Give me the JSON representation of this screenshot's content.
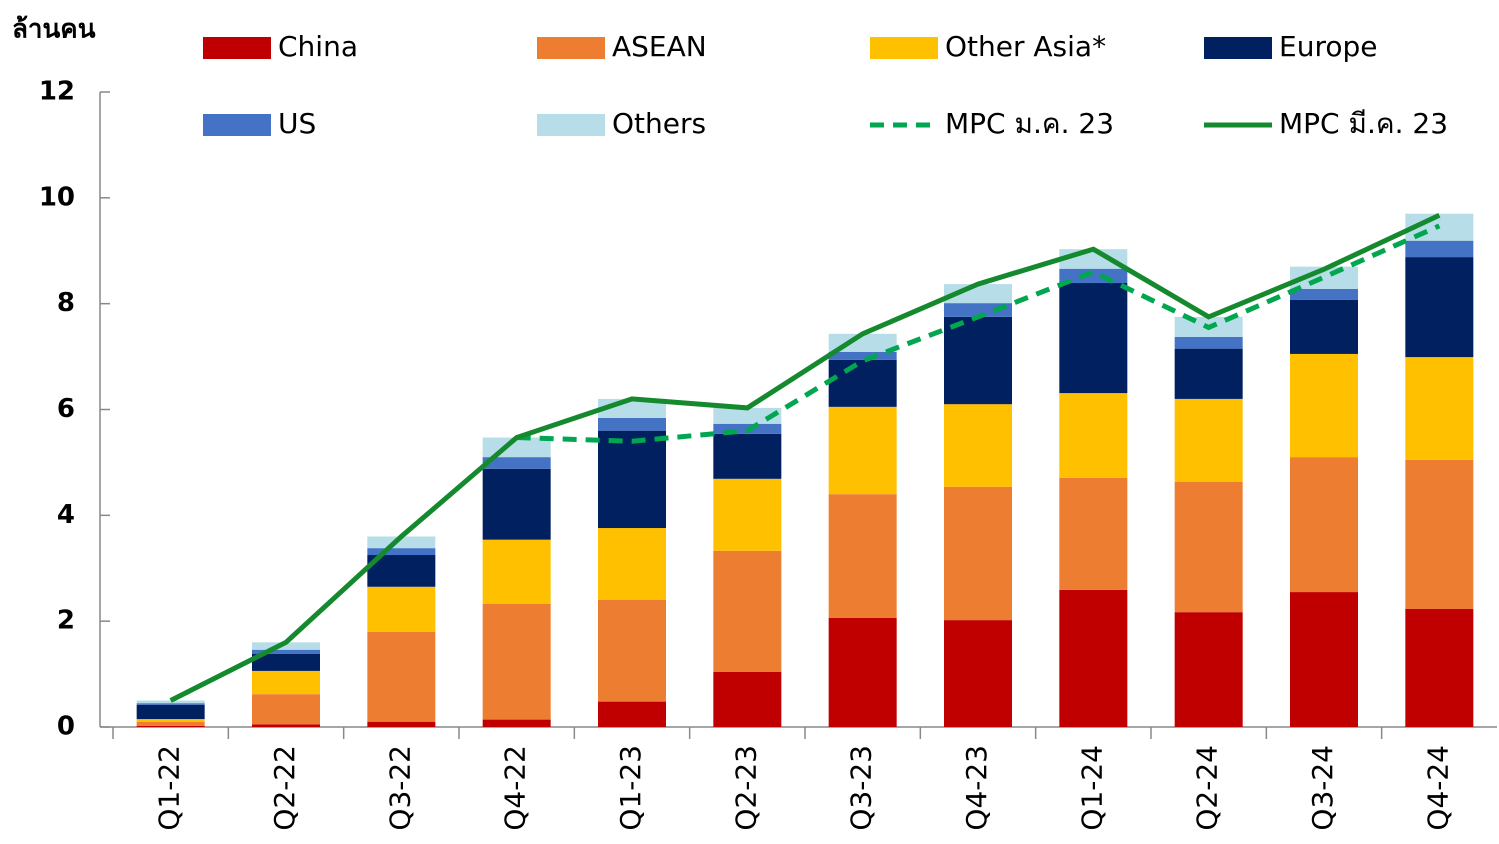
{
  "chart_data": {
    "type": "bar",
    "stacked": true,
    "y_label": "ล้านคน",
    "categories": [
      "Q1-22",
      "Q2-22",
      "Q3-22",
      "Q4-22",
      "Q1-23",
      "Q2-23",
      "Q3-23",
      "Q4-23",
      "Q1-24",
      "Q2-24",
      "Q3-24",
      "Q4-24"
    ],
    "ylim": [
      0,
      12
    ],
    "yticks": [
      0,
      2,
      4,
      6,
      8,
      10,
      12
    ],
    "series": [
      {
        "name": "China",
        "color": "#c00000",
        "values": [
          0.02,
          0.05,
          0.1,
          0.14,
          0.48,
          1.04,
          2.06,
          2.02,
          2.59,
          2.17,
          2.55,
          2.23
        ]
      },
      {
        "name": "ASEAN",
        "color": "#ed7d31",
        "values": [
          0.08,
          0.57,
          1.7,
          2.19,
          1.92,
          2.29,
          2.34,
          2.52,
          2.12,
          2.46,
          2.55,
          2.82
        ]
      },
      {
        "name": "Other Asia*",
        "color": "#ffc000",
        "values": [
          0.05,
          0.44,
          0.85,
          1.21,
          1.36,
          1.36,
          1.65,
          1.56,
          1.6,
          1.57,
          1.95,
          1.94
        ]
      },
      {
        "name": "Europe",
        "color": "#002060",
        "values": [
          0.27,
          0.32,
          0.6,
          1.34,
          1.84,
          0.85,
          0.89,
          1.65,
          2.08,
          0.95,
          1.02,
          1.89
        ]
      },
      {
        "name": "US",
        "color": "#4472c4",
        "values": [
          0.03,
          0.08,
          0.13,
          0.22,
          0.24,
          0.19,
          0.15,
          0.26,
          0.27,
          0.22,
          0.21,
          0.31
        ]
      },
      {
        "name": "Others",
        "color": "#b7dde8",
        "values": [
          0.05,
          0.14,
          0.22,
          0.37,
          0.36,
          0.3,
          0.34,
          0.36,
          0.37,
          0.38,
          0.42,
          0.51
        ]
      },
      {
        "name": "MPC ม.ค. 23",
        "color": "#00a650",
        "type": "line",
        "dashed": true,
        "values": [
          null,
          null,
          null,
          5.47,
          5.4,
          5.6,
          6.92,
          7.75,
          8.6,
          7.55,
          8.5,
          9.47
        ]
      },
      {
        "name": "MPC มี.ค. 23",
        "color": "#15892e",
        "type": "line",
        "dashed": false,
        "values": [
          0.5,
          1.6,
          3.6,
          5.47,
          6.2,
          6.03,
          7.43,
          8.37,
          9.03,
          7.75,
          8.65,
          9.67
        ]
      }
    ]
  }
}
